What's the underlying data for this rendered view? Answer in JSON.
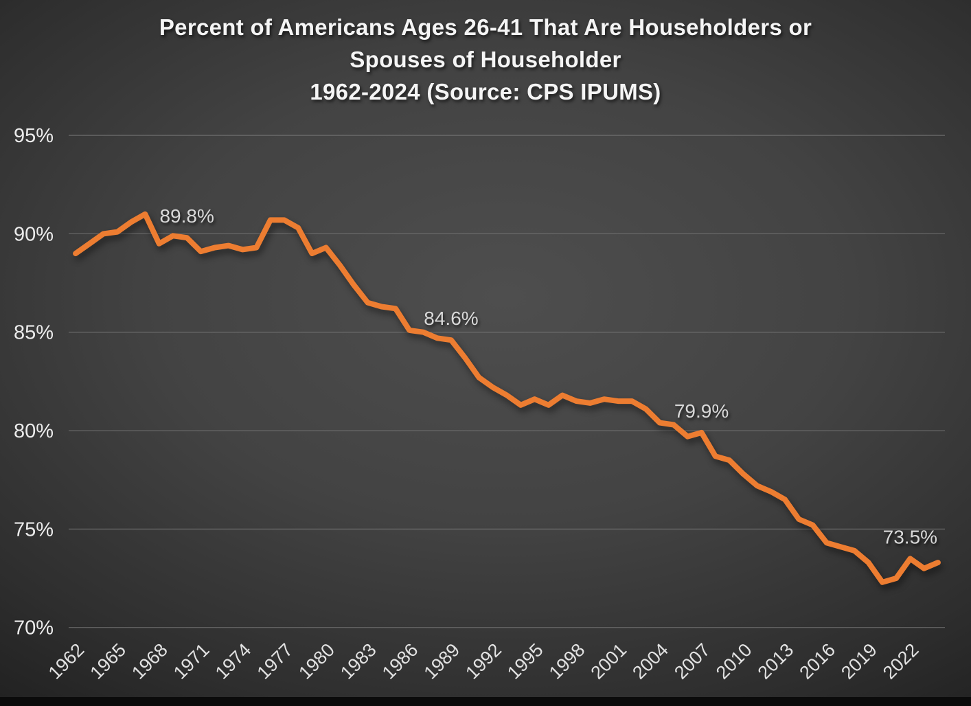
{
  "title": {
    "line1": "Percent of Americans Ages 26-41 That Are Householders or",
    "line2": "Spouses of Householder",
    "line3": "1962-2024 (Source: CPS IPUMS)"
  },
  "chart_data": {
    "type": "line",
    "title": "Percent of Americans Ages 26-41 That Are Householders or Spouses of Householder 1962-2024 (Source: CPS IPUMS)",
    "xlabel": "",
    "ylabel": "",
    "ylim": [
      70,
      95
    ],
    "y_tick_step": 5,
    "y_tick_values": [
      70,
      75,
      80,
      85,
      90,
      95
    ],
    "y_tick_suffix": "%",
    "x_tick_every_years": 3,
    "x_tick_labels": [
      "1962",
      "1965",
      "1968",
      "1971",
      "1974",
      "1977",
      "1980",
      "1983",
      "1986",
      "1989",
      "1992",
      "1995",
      "1998",
      "2001",
      "2004",
      "2007",
      "2010",
      "2013",
      "2016",
      "2019",
      "2022"
    ],
    "grid": true,
    "legend": "none",
    "years": [
      1962,
      1963,
      1964,
      1965,
      1966,
      1967,
      1968,
      1969,
      1970,
      1971,
      1972,
      1973,
      1974,
      1975,
      1976,
      1977,
      1978,
      1979,
      1980,
      1981,
      1982,
      1983,
      1984,
      1985,
      1986,
      1987,
      1988,
      1989,
      1990,
      1991,
      1992,
      1993,
      1994,
      1995,
      1996,
      1997,
      1998,
      1999,
      2000,
      2001,
      2002,
      2003,
      2004,
      2005,
      2006,
      2007,
      2008,
      2009,
      2010,
      2011,
      2012,
      2013,
      2014,
      2015,
      2016,
      2017,
      2018,
      2019,
      2020,
      2021,
      2022,
      2023,
      2024
    ],
    "values": [
      89.0,
      89.5,
      90.0,
      90.1,
      90.6,
      91.0,
      89.5,
      89.9,
      89.8,
      89.1,
      89.3,
      89.4,
      89.2,
      89.3,
      90.7,
      90.7,
      90.3,
      89.0,
      89.3,
      88.4,
      87.4,
      86.5,
      86.3,
      86.2,
      85.1,
      85.0,
      84.7,
      84.6,
      83.7,
      82.7,
      82.2,
      81.8,
      81.3,
      81.6,
      81.3,
      81.8,
      81.5,
      81.4,
      81.6,
      81.5,
      81.5,
      81.1,
      80.4,
      80.3,
      79.7,
      79.9,
      78.7,
      78.5,
      77.8,
      77.2,
      76.9,
      76.5,
      75.5,
      75.2,
      74.3,
      74.1,
      73.9,
      73.3,
      72.3,
      72.5,
      73.5,
      73.0,
      73.3
    ],
    "data_labels": [
      {
        "year": 1970,
        "text": "89.8%"
      },
      {
        "year": 1989,
        "text": "84.6%"
      },
      {
        "year": 2007,
        "text": "79.9%"
      },
      {
        "year": 2022,
        "text": "73.5%"
      }
    ],
    "colors": {
      "line": "#ED7D31",
      "data_label": "#d9d9d9",
      "gridline": "#7a7a7a",
      "tick_label": "#ececec",
      "title": "#f5f5f5"
    }
  }
}
